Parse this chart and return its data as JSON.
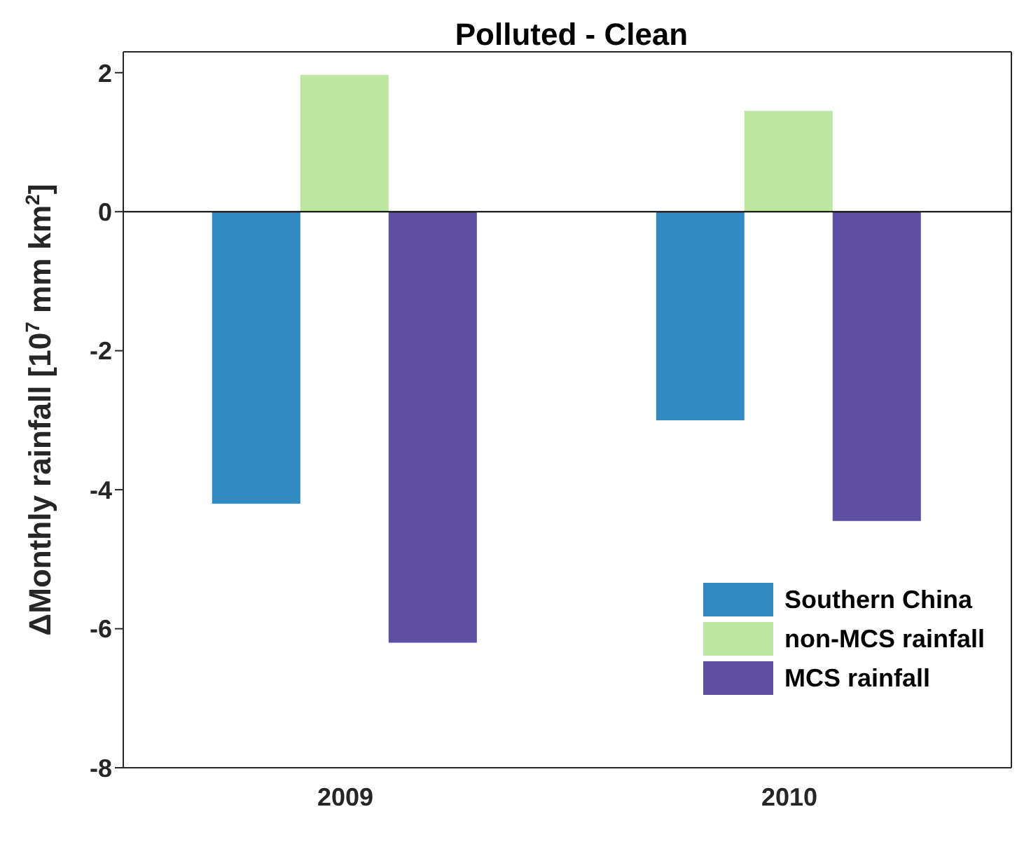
{
  "chart_data": {
    "type": "bar",
    "title": "Polluted - Clean",
    "ylabel": "ΔMonthly rainfall [10$^{7}$ mm km$^{2}$]",
    "categories": [
      "2009",
      "2010"
    ],
    "series": [
      {
        "name": "Southern China",
        "color": "#318ac2",
        "values": [
          -4.2,
          -3.0
        ]
      },
      {
        "name": "non-MCS rainfall",
        "color": "#bde6a0",
        "values": [
          1.97,
          1.45
        ]
      },
      {
        "name": "MCS rainfall",
        "color": "#5e4fa2",
        "values": [
          -6.2,
          -4.45
        ]
      }
    ],
    "ylim": [
      -8,
      2.3
    ],
    "yticks": [
      -8,
      -6,
      -4,
      -2,
      0,
      2
    ],
    "grid": false,
    "legend": "bottom right",
    "ref_lines": [
      {
        "axis": "y",
        "value": 0,
        "color": "#000000"
      }
    ]
  }
}
